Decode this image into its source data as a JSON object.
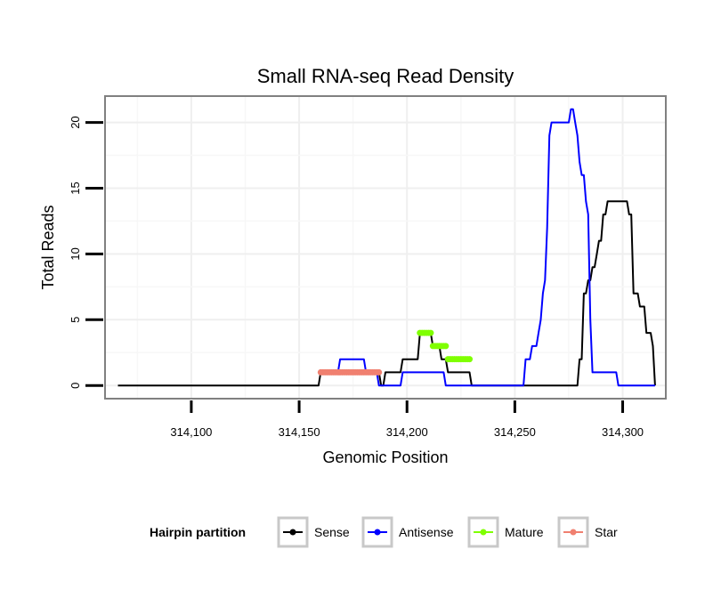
{
  "chart_data": {
    "type": "line",
    "title": "Small RNA-seq Read Density",
    "xlabel": "Genomic Position",
    "ylabel": "Total Reads",
    "xlim": [
      314060,
      314320
    ],
    "ylim": [
      -1,
      22
    ],
    "x_ticks": [
      314100,
      314150,
      314200,
      314250,
      314300
    ],
    "x_tick_labels": [
      "314,100",
      "314,150",
      "314,200",
      "314,250",
      "314,300"
    ],
    "y_ticks": [
      0,
      5,
      10,
      15,
      20
    ],
    "y_tick_labels": [
      "0",
      "5",
      "10",
      "15",
      "20"
    ],
    "grid": true,
    "legend": {
      "title": "Hairpin partition",
      "position": "bottom",
      "entries": [
        "Sense",
        "Antisense",
        "Mature",
        "Star"
      ]
    },
    "series": [
      {
        "name": "Sense",
        "color": "#000000",
        "kind": "line",
        "x": [
          314066,
          314159,
          314160,
          314187,
          314188,
          314189,
          314190,
          314197,
          314198,
          314205,
          314206,
          314211,
          314212,
          314215,
          314216,
          314218,
          314219,
          314229,
          314230,
          314279,
          314280,
          314281,
          314282,
          314283,
          314284,
          314285,
          314286,
          314287,
          314288,
          314289,
          314290,
          314291,
          314292,
          314293,
          314294,
          314295,
          314296,
          314302,
          314303,
          314304,
          314305,
          314307,
          314308,
          314310,
          314311,
          314312,
          314313,
          314314,
          314315
        ],
        "y": [
          0,
          0,
          1,
          1,
          0,
          0,
          1,
          1,
          2,
          2,
          4,
          4,
          3,
          3,
          2,
          2,
          1,
          1,
          0,
          0,
          2,
          2,
          7,
          7,
          8,
          8,
          9,
          9,
          10,
          11,
          11,
          13,
          13,
          14,
          14,
          14,
          14,
          14,
          13,
          13,
          7,
          7,
          6,
          6,
          4,
          4,
          4,
          3,
          0
        ]
      },
      {
        "name": "Antisense",
        "color": "#0000ff",
        "kind": "line",
        "x": [
          314160,
          314168,
          314169,
          314180,
          314181,
          314186,
          314187,
          314197,
          314198,
          314217,
          314218,
          314226,
          314227,
          314254,
          314255,
          314257,
          314258,
          314260,
          314261,
          314262,
          314263,
          314264,
          314265,
          314266,
          314267,
          314268,
          314269,
          314270,
          314271,
          314272,
          314273,
          314274,
          314275,
          314276,
          314277,
          314278,
          314279,
          314280,
          314281,
          314282,
          314283,
          314284,
          314285,
          314286,
          314287,
          314288,
          314289,
          314290,
          314291,
          314297,
          314298,
          314315
        ],
        "y": [
          1,
          1,
          2,
          2,
          1,
          1,
          0,
          0,
          1,
          1,
          0,
          0,
          0,
          0,
          2,
          2,
          3,
          3,
          4,
          5,
          7,
          8,
          12,
          19,
          20,
          20,
          20,
          20,
          20,
          20,
          20,
          20,
          20,
          21,
          21,
          20,
          19,
          17,
          16,
          16,
          14,
          13,
          5,
          1,
          1,
          1,
          1,
          1,
          1,
          1,
          0,
          0
        ]
      },
      {
        "name": "Mature",
        "color": "#7fff00",
        "kind": "points",
        "x": [
          314206,
          314207,
          314208,
          314209,
          314210,
          314211,
          314212,
          314213,
          314214,
          314215,
          314216,
          314217,
          314218,
          314219,
          314220,
          314221,
          314222,
          314223,
          314224,
          314225,
          314226,
          314227,
          314228,
          314229
        ],
        "y": [
          4,
          4,
          4,
          4,
          4,
          4,
          3,
          3,
          3,
          3,
          3,
          3,
          3,
          2,
          2,
          2,
          2,
          2,
          2,
          2,
          2,
          2,
          2,
          2
        ]
      },
      {
        "name": "Star",
        "color": "#f08070",
        "kind": "points",
        "x": [
          314160,
          314161,
          314162,
          314163,
          314164,
          314165,
          314166,
          314167,
          314168,
          314169,
          314170,
          314171,
          314172,
          314173,
          314174,
          314175,
          314176,
          314177,
          314178,
          314179,
          314180,
          314181,
          314182,
          314183,
          314184,
          314185,
          314186,
          314187
        ],
        "y": [
          1,
          1,
          1,
          1,
          1,
          1,
          1,
          1,
          1,
          1,
          1,
          1,
          1,
          1,
          1,
          1,
          1,
          1,
          1,
          1,
          1,
          1,
          1,
          1,
          1,
          1,
          1,
          1
        ]
      }
    ]
  }
}
